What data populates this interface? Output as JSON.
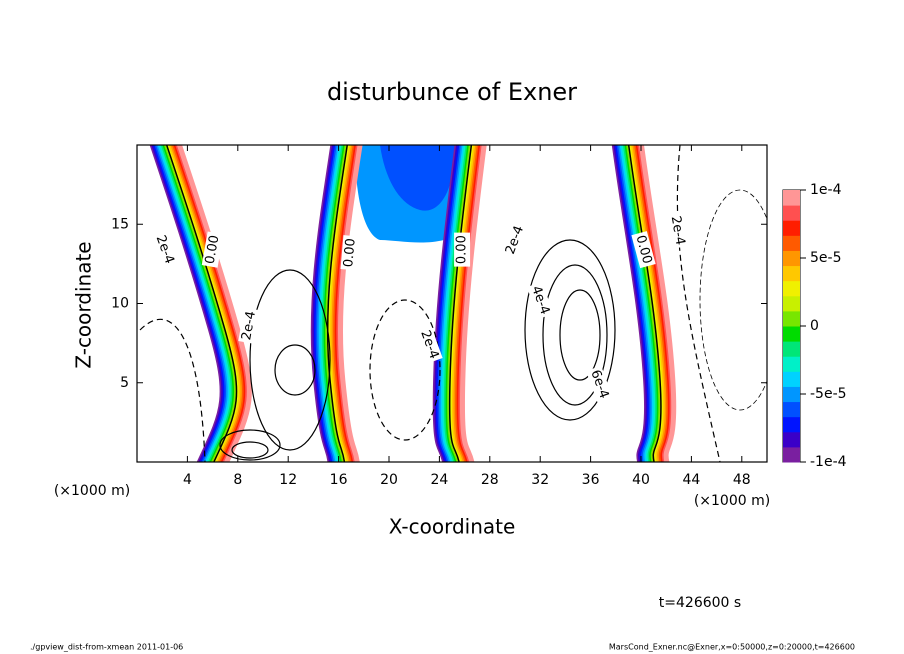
{
  "chart_data": {
    "type": "contour",
    "title": "disturbunce of Exner",
    "xlabel": "X-coordinate",
    "ylabel": "Z-coordinate",
    "xunit": "(×1000 m)",
    "yunit": "(×1000 m)",
    "xlim": [
      0,
      50
    ],
    "xticks": [
      4,
      8,
      12,
      16,
      20,
      24,
      28,
      32,
      36,
      40,
      44,
      48
    ],
    "ylim": [
      0,
      20
    ],
    "yticks": [
      5,
      10,
      15
    ],
    "colorbar": {
      "lim": [
        -0.0001,
        0.0001
      ],
      "ticks": [
        {
          "value": 0.0001,
          "label": "1e-4"
        },
        {
          "value": 5e-05,
          "label": "5e-5"
        },
        0,
        {
          "value": -5e-05,
          "label": "-5e-5"
        },
        {
          "value": -0.0001,
          "label": "-1e-4"
        }
      ],
      "colors": [
        "#7a1fa0",
        "#3a00c8",
        "#0014ff",
        "#0050ff",
        "#0096ff",
        "#00d2ff",
        "#00f0c8",
        "#00e678",
        "#00dc00",
        "#78e600",
        "#c8f000",
        "#f0f000",
        "#ffc800",
        "#ff9600",
        "#ff5a00",
        "#ff1e00",
        "#ff5050",
        "#ff9696"
      ]
    },
    "contour_labels": [
      {
        "value": 0.0002,
        "label": "2e-4",
        "x": 2.2,
        "y": 13.4
      },
      {
        "value": 0,
        "label": "0.00",
        "x": 6.0,
        "y": 13.4
      },
      {
        "value": 0.0002,
        "label": "2e-4",
        "x": 8.9,
        "y": 8.6
      },
      {
        "value": 0,
        "label": "0.00",
        "x": 16.9,
        "y": 13.2
      },
      {
        "value": 0.0002,
        "label": "2e-4",
        "x": 23.2,
        "y": 7.4
      },
      {
        "value": 0,
        "label": "0.00",
        "x": 25.8,
        "y": 13.4
      },
      {
        "value": 0.0002,
        "label": "2e-4",
        "x": 30.0,
        "y": 14.0
      },
      {
        "value": 0.0004,
        "label": "4e-4",
        "x": 32.0,
        "y": 10.2
      },
      {
        "value": 0.0006,
        "label": "6e-4",
        "x": 36.7,
        "y": 4.9
      },
      {
        "value": 0,
        "label": "0.00",
        "x": 40.2,
        "y": 13.4
      },
      {
        "value": 0.0002,
        "label": "2e-4",
        "x": 42.9,
        "y": 14.6
      }
    ],
    "time_label": "t=426600 s",
    "footer_left": "./gpview_dist-from-xmean  2011-01-06",
    "footer_right": "MarsCond_Exner.nc@Exner,x=0:50000,z=0:20000,t=426600"
  }
}
